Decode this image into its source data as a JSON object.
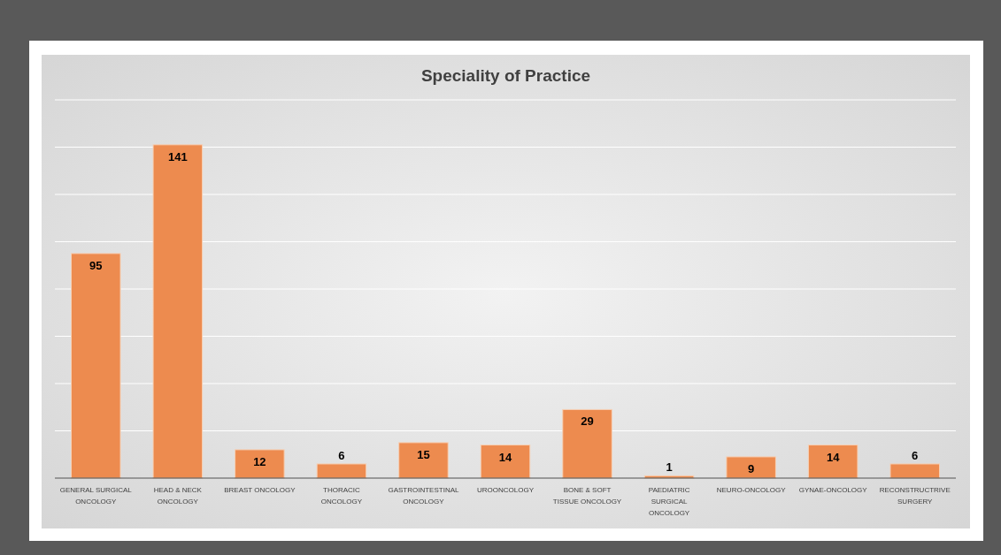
{
  "chart_data": {
    "type": "bar",
    "title": "Speciality of Practice",
    "categories": [
      "GENERAL SURGICAL ONCOLOGY",
      "HEAD & NECK ONCOLOGY",
      "BREAST ONCOLOGY",
      "THORACIC ONCOLOGY",
      "GASTROINTESTINAL ONCOLOGY",
      "UROONCOLOGY",
      "BONE & SOFT TISSUE ONCOLOGY",
      "PAEDIATRIC SURGICAL ONCOLOGY",
      "NEURO-ONCOLOGY",
      "GYNAE-ONCOLOGY",
      "RECONSTRUCTRIVE SURGERY"
    ],
    "values": [
      95,
      141,
      12,
      6,
      15,
      14,
      29,
      1,
      9,
      14,
      6
    ],
    "color": "#ed8b4f",
    "ylim": [
      0,
      160
    ],
    "yticks": [
      {
        "value": 0,
        "label": null
      },
      {
        "value": 20,
        "label": null
      },
      {
        "value": 40,
        "label": null
      },
      {
        "value": 60,
        "label": null
      },
      {
        "value": 80,
        "label": null
      },
      {
        "value": 100,
        "label": null
      },
      {
        "value": 120,
        "label": null
      },
      {
        "value": 140,
        "label": null
      },
      {
        "value": 160,
        "label": null
      }
    ],
    "grid": "y",
    "tick_labels": "x",
    "data_labels": true
  }
}
